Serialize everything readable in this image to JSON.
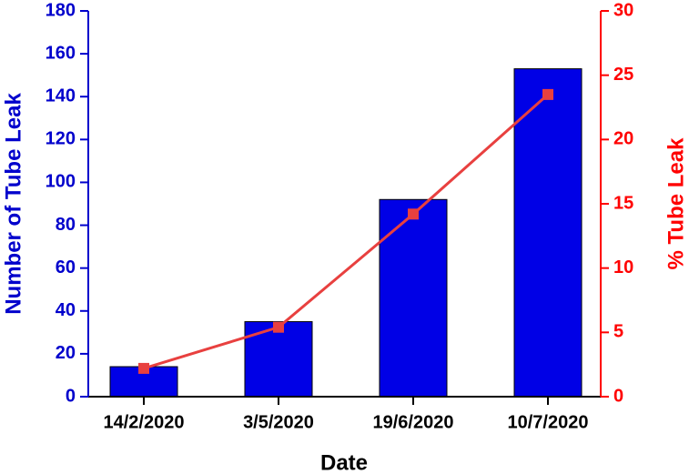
{
  "chart_data": {
    "type": "bar",
    "x_label": "Date",
    "y_label": "Number of Tube Leak",
    "y2_label": "% Tube Leak",
    "categories": [
      "14/2/2020",
      "3/5/2020",
      "19/6/2020",
      "10/7/2020"
    ],
    "series": [
      {
        "name": "Number of Tube Leak",
        "type": "bar",
        "color": "#0000e6",
        "values": [
          14,
          35,
          92,
          153
        ]
      },
      {
        "name": "% Tube Leak",
        "type": "line",
        "axis": "y2",
        "color": "#e8403f",
        "values": [
          2.2,
          5.4,
          14.2,
          23.5
        ]
      }
    ],
    "ylim": [
      0,
      180
    ],
    "yticks": [
      0,
      20,
      40,
      60,
      80,
      100,
      120,
      140,
      160,
      180
    ],
    "y2lim": [
      0,
      30
    ],
    "y2ticks": [
      0,
      5,
      10,
      15,
      20,
      25,
      30
    ],
    "y_axis_color": "#0000cc",
    "y2_axis_color": "#ff0000",
    "grid": false
  }
}
